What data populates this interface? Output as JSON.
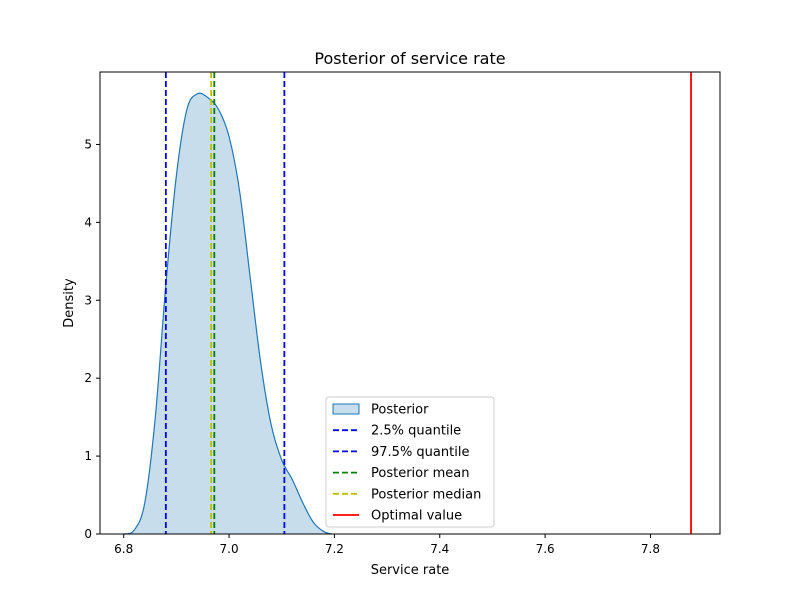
{
  "chart_data": {
    "type": "area",
    "title": "Posterior of service rate",
    "xlabel": "Service rate",
    "ylabel": "Density",
    "xlim": [
      6.755,
      7.932
    ],
    "ylim": [
      0,
      5.93
    ],
    "xticks": [
      6.8,
      7.0,
      7.2,
      7.4,
      7.6,
      7.8
    ],
    "xtick_labels": [
      "6.8",
      "7.0",
      "7.2",
      "7.4",
      "7.6",
      "7.8"
    ],
    "yticks": [
      0,
      1,
      2,
      3,
      4,
      5
    ],
    "ytick_labels": [
      "0",
      "1",
      "2",
      "3",
      "4",
      "5"
    ],
    "grid": false,
    "legend_position": "lower center",
    "density": {
      "name": "Posterior",
      "color": "#1f77b4",
      "fill_color": "#1f77b4",
      "fill_opacity": 0.25,
      "x": [
        6.8,
        6.82,
        6.84,
        6.86,
        6.88,
        6.9,
        6.92,
        6.94,
        6.96,
        6.98,
        7.0,
        7.02,
        7.04,
        7.06,
        7.08,
        7.1,
        7.12,
        7.14,
        7.16,
        7.18,
        7.195
      ],
      "y": [
        0.0,
        0.05,
        0.4,
        1.5,
        3.2,
        4.6,
        5.45,
        5.65,
        5.6,
        5.45,
        5.1,
        4.4,
        3.3,
        2.2,
        1.4,
        0.95,
        0.7,
        0.4,
        0.15,
        0.03,
        0.0
      ]
    },
    "vlines": [
      {
        "name": "2.5% quantile",
        "x": 6.88,
        "color": "#0000ff",
        "style": "dashed"
      },
      {
        "name": "97.5% quantile",
        "x": 7.105,
        "color": "#0000ff",
        "style": "dashed"
      },
      {
        "name": "Posterior mean",
        "x": 6.972,
        "color": "#008000",
        "style": "dashed"
      },
      {
        "name": "Posterior median",
        "x": 6.966,
        "color": "#bfbf00",
        "style": "dashed"
      },
      {
        "name": "Optimal value",
        "x": 7.877,
        "color": "#ff0000",
        "style": "solid"
      }
    ],
    "legend": [
      "Posterior",
      "2.5% quantile",
      "97.5% quantile",
      "Posterior mean",
      "Posterior median",
      "Optimal value"
    ]
  }
}
